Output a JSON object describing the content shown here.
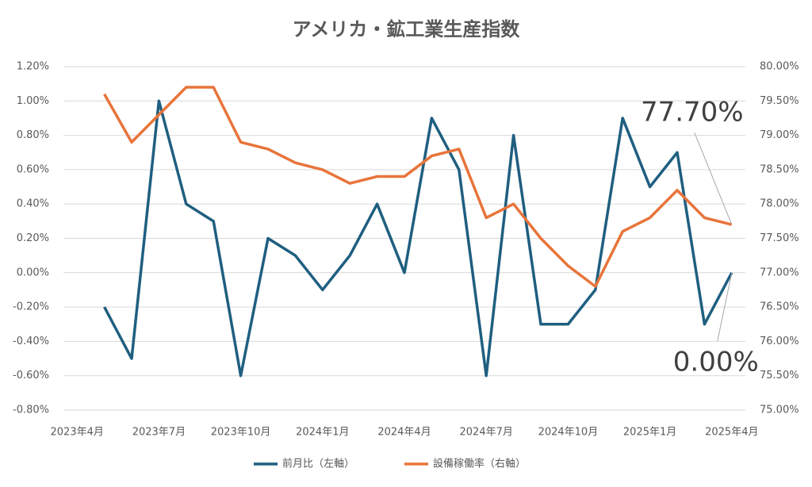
{
  "chart_data": {
    "type": "line",
    "title": "アメリカ・鉱工業生産指数",
    "categories": [
      "2023年4月",
      null,
      null,
      "2023年7月",
      null,
      null,
      "2023年10月",
      null,
      null,
      "2024年1月",
      null,
      null,
      "2024年4月",
      null,
      null,
      "2024年7月",
      null,
      null,
      "2024年10月",
      null,
      null,
      "2025年1月",
      null,
      null,
      "2025年4月"
    ],
    "series": [
      {
        "name": "前月比（左軸）",
        "color": "#1f5f80",
        "axis": "y",
        "values": [
          null,
          -0.2,
          -0.5,
          1.0,
          0.4,
          0.3,
          -0.6,
          0.2,
          0.1,
          -0.1,
          0.1,
          0.4,
          0.0,
          0.9,
          0.6,
          -0.6,
          0.8,
          -0.3,
          -0.3,
          -0.1,
          0.9,
          0.5,
          0.7,
          -0.3,
          0.0
        ],
        "value_labels": [
          null,
          null,
          null,
          null,
          null,
          null,
          null,
          null,
          null,
          null,
          null,
          null,
          null,
          null,
          null,
          null,
          null,
          null,
          null,
          null,
          null,
          null,
          null,
          null,
          "0.00%"
        ]
      },
      {
        "name": "設備稼働率（右軸）",
        "color": "#e8743b",
        "axis": "y2",
        "values": [
          null,
          79.6,
          78.9,
          79.3,
          79.7,
          79.7,
          78.9,
          78.8,
          78.6,
          78.5,
          78.3,
          78.4,
          78.4,
          78.7,
          78.8,
          77.8,
          78.0,
          77.5,
          77.1,
          76.8,
          77.6,
          77.8,
          78.2,
          77.8,
          77.7
        ],
        "value_labels": [
          null,
          null,
          null,
          null,
          null,
          null,
          null,
          null,
          null,
          null,
          null,
          null,
          null,
          null,
          null,
          null,
          null,
          null,
          null,
          null,
          null,
          null,
          null,
          null,
          "77.70%"
        ]
      }
    ],
    "ylim": [
      -0.8,
      1.2
    ],
    "yticks": [
      {
        "value": -0.8,
        "label": "-0.80%"
      },
      {
        "value": -0.6,
        "label": "-0.60%"
      },
      {
        "value": -0.4,
        "label": "-0.40%"
      },
      {
        "value": -0.2,
        "label": "-0.20%"
      },
      {
        "value": 0,
        "label": "0.00%"
      },
      {
        "value": 0.2,
        "label": "0.20%"
      },
      {
        "value": 0.4,
        "label": "0.40%"
      },
      {
        "value": 0.6,
        "label": "0.60%"
      },
      {
        "value": 0.8,
        "label": "0.80%"
      },
      {
        "value": 1.0,
        "label": "1.00%"
      },
      {
        "value": 1.2,
        "label": "1.20%"
      }
    ],
    "y2lim": [
      75,
      80
    ],
    "y2ticks": [
      {
        "value": 75,
        "label": "75.00%"
      },
      {
        "value": 75.5,
        "label": "75.50%"
      },
      {
        "value": 76,
        "label": "76.00%"
      },
      {
        "value": 76.5,
        "label": "76.50%"
      },
      {
        "value": 77,
        "label": "77.00%"
      },
      {
        "value": 77.5,
        "label": "77.50%"
      },
      {
        "value": 78,
        "label": "78.00%"
      },
      {
        "value": 78.5,
        "label": "78.50%"
      },
      {
        "value": 79,
        "label": "79.00%"
      },
      {
        "value": 79.5,
        "label": "79.50%"
      },
      {
        "value": 80,
        "label": "80.00%"
      }
    ],
    "grid": true,
    "legend": "bottom"
  }
}
